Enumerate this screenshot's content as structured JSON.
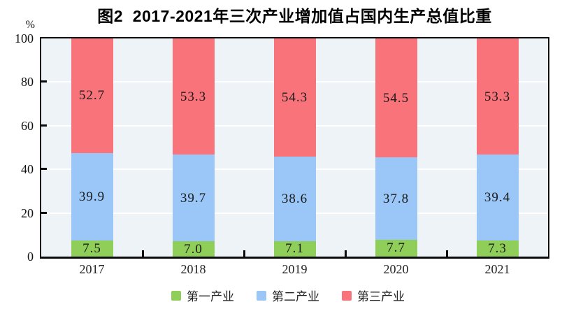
{
  "chart_data": {
    "type": "bar",
    "stacked": true,
    "title": "图2  2017-2021年三次产业增加值占国内生产总值比重",
    "categories": [
      "2017",
      "2018",
      "2019",
      "2020",
      "2021"
    ],
    "series": [
      {
        "name": "第一产业",
        "color": "#8FCE58",
        "values": [
          7.5,
          7.0,
          7.1,
          7.7,
          7.3
        ]
      },
      {
        "name": "第二产业",
        "color": "#9AC7F7",
        "values": [
          39.9,
          39.7,
          38.6,
          37.8,
          39.4
        ]
      },
      {
        "name": "第三产业",
        "color": "#F9737B",
        "values": [
          52.7,
          53.3,
          54.3,
          54.5,
          53.3
        ]
      }
    ],
    "ylim": [
      0,
      100
    ],
    "yticks": [
      0,
      20,
      40,
      60,
      80,
      100
    ],
    "ylabel": "%",
    "xlabel": "",
    "grid": true,
    "legend_position": "bottom",
    "value_labels_decimals": 1
  },
  "y_axis": {
    "unit": "%"
  },
  "colors": {
    "plot_background": "#EDF3F7",
    "gridline": "#FFFFFF",
    "axis": "#0B0B0B",
    "value_label": "#1A1A1A"
  }
}
